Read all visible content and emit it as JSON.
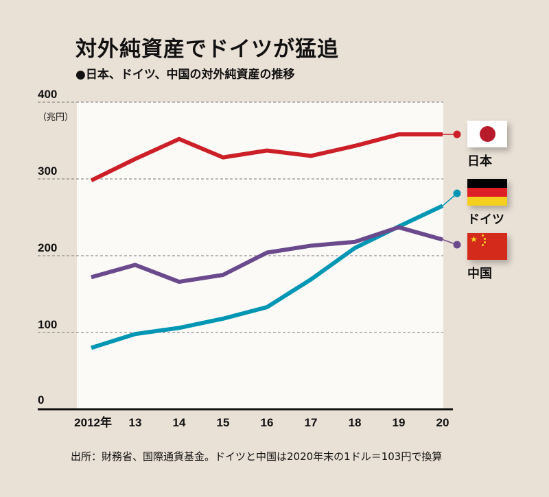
{
  "title": "対外純資産でドイツが猛追",
  "subtitle": "●日本、ドイツ、中国の対外純資産の推移",
  "source": "出所：財務省、国際通貨基金。ドイツと中国は2020年末の1ドル＝103円で換算",
  "chart_data": {
    "type": "line",
    "title": "対外純資産でドイツが猛追",
    "ylabel": "（兆円）",
    "ylim": [
      0,
      400
    ],
    "yticks": [
      "0",
      "100",
      "200",
      "300",
      "400"
    ],
    "grid": "dashed horizontal",
    "legend": "right",
    "categories": [
      "2012年",
      "13",
      "14",
      "15",
      "16",
      "17",
      "18",
      "19",
      "20"
    ],
    "series": [
      {
        "name": "日本",
        "color": "#cc1f27",
        "flag": "japan-flag",
        "values": [
          298,
          326,
          352,
          328,
          337,
          330,
          343,
          358,
          358
        ]
      },
      {
        "name": "ドイツ",
        "color": "#0096b4",
        "flag": "germany-flag",
        "values": [
          80,
          98,
          106,
          118,
          133,
          169,
          210,
          238,
          265
        ]
      },
      {
        "name": "中国",
        "color": "#6a4a8c",
        "flag": "china-flag",
        "values": [
          172,
          188,
          166,
          175,
          204,
          213,
          218,
          237,
          221
        ]
      }
    ]
  }
}
